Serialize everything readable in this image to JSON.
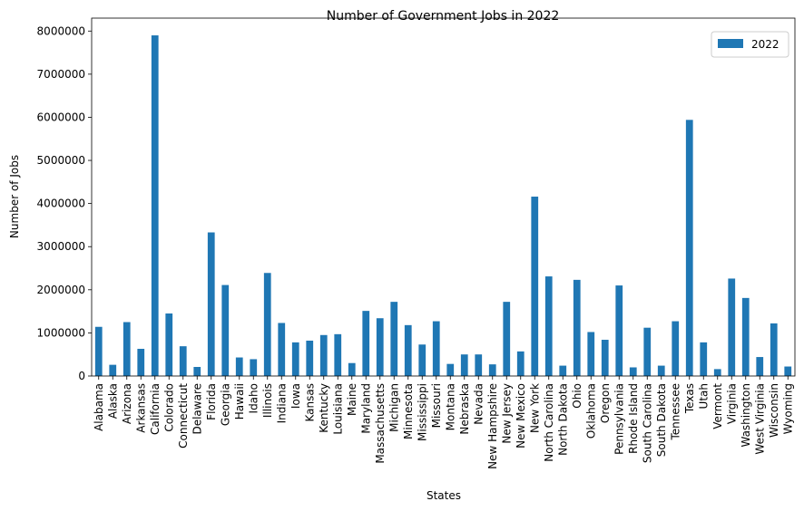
{
  "chart_data": {
    "type": "bar",
    "title": "Number of Government Jobs in 2022",
    "xlabel": "States",
    "ylabel": "Number of Jobs",
    "ylim": [
      0,
      8300000
    ],
    "yticks": [
      "0",
      "1000000",
      "2000000",
      "3000000",
      "4000000",
      "5000000",
      "6000000",
      "7000000",
      "8000000"
    ],
    "legend": {
      "position": "top-right",
      "entries": [
        "2022"
      ]
    },
    "grid": false,
    "bar_color": "#1f77b4",
    "categories": [
      "Alabama",
      "Alaska",
      "Arizona",
      "Arkansas",
      "California",
      "Colorado",
      "Connecticut",
      "Delaware",
      "Florida",
      "Georgia",
      "Hawaii",
      "Idaho",
      "Illinois",
      "Indiana",
      "Iowa",
      "Kansas",
      "Kentucky",
      "Louisiana",
      "Maine",
      "Maryland",
      "Massachusetts",
      "Michigan",
      "Minnesota",
      "Mississippi",
      "Missouri",
      "Montana",
      "Nebraska",
      "Nevada",
      "New Hampshire",
      "New Jersey",
      "New Mexico",
      "New York",
      "North Carolina",
      "North Dakota",
      "Ohio",
      "Oklahoma",
      "Oregon",
      "Pennsylvania",
      "Rhode Island",
      "South Carolina",
      "South Dakota",
      "Tennessee",
      "Texas",
      "Utah",
      "Vermont",
      "Virginia",
      "Washington",
      "West Virginia",
      "Wisconsin",
      "Wyoming"
    ],
    "series": [
      {
        "name": "2022",
        "values": [
          1140000,
          260000,
          1250000,
          630000,
          7900000,
          1450000,
          690000,
          210000,
          3330000,
          2110000,
          430000,
          390000,
          2390000,
          1230000,
          780000,
          820000,
          950000,
          970000,
          300000,
          1510000,
          1340000,
          1720000,
          1180000,
          730000,
          1270000,
          280000,
          500000,
          500000,
          270000,
          1720000,
          570000,
          4160000,
          2310000,
          240000,
          2230000,
          1020000,
          840000,
          2100000,
          200000,
          1120000,
          240000,
          1270000,
          5940000,
          780000,
          160000,
          2260000,
          1810000,
          440000,
          1220000,
          220000
        ]
      }
    ]
  }
}
